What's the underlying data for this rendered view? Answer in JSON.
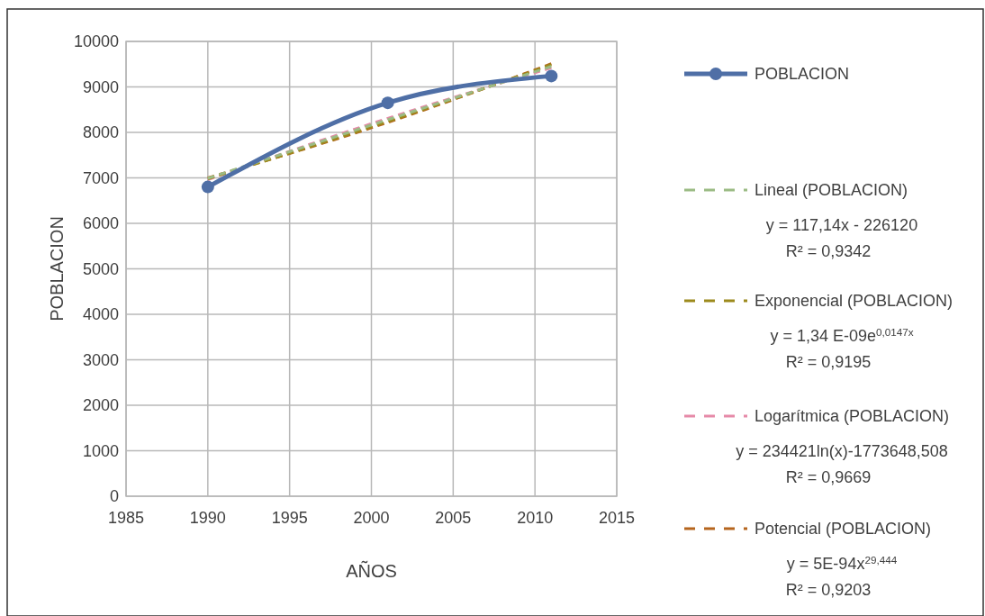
{
  "chart_data": {
    "type": "line",
    "xlabel": "AÑOS",
    "ylabel": "POBLACION",
    "x": [
      1990,
      2001,
      2011
    ],
    "series": [
      {
        "name": "POBLACION",
        "color": "#4f6fa6",
        "values": [
          6800,
          8650,
          9240
        ],
        "marker": "circle",
        "line_style": "solid"
      },
      {
        "name": "Lineal (POBLACION)",
        "color": "#9bbb84",
        "values": [
          6990,
          8280,
          9450
        ],
        "marker": "none",
        "line_style": "dashed"
      },
      {
        "name": "Exponencial (POBLACION)",
        "color": "#9c8a1c",
        "values": [
          6980,
          8240,
          9490
        ],
        "marker": "none",
        "line_style": "dashed"
      },
      {
        "name": "Logarítmica (POBLACION)",
        "color": "#e68aa8",
        "values": [
          6960,
          8310,
          9420
        ],
        "marker": "none",
        "line_style": "dashed"
      },
      {
        "name": "Potencial (POBLACION)",
        "color": "#b5651d",
        "values": [
          7000,
          8220,
          9510
        ],
        "marker": "none",
        "line_style": "dashed"
      }
    ],
    "annotations": [
      "y = 117,14x - 226120",
      "R² = 0,9342",
      "y = 1,34 E-09e$^{0,0147x}$",
      "R² = 0,9195",
      "y = 234421ln(x)-1773648,508",
      "R² =  0,9669",
      "y = 5E-94x$^{29,444}$",
      "R² = 0,9203"
    ],
    "xlim": [
      1985,
      2015
    ],
    "xticks": [
      1985,
      1990,
      1995,
      2000,
      2005,
      2010,
      2015
    ],
    "ylim": [
      0,
      10000
    ],
    "yticks": [
      0,
      1000,
      2000,
      3000,
      4000,
      5000,
      6000,
      7000,
      8000,
      9000,
      10000
    ],
    "grid": true,
    "legend": "right"
  }
}
